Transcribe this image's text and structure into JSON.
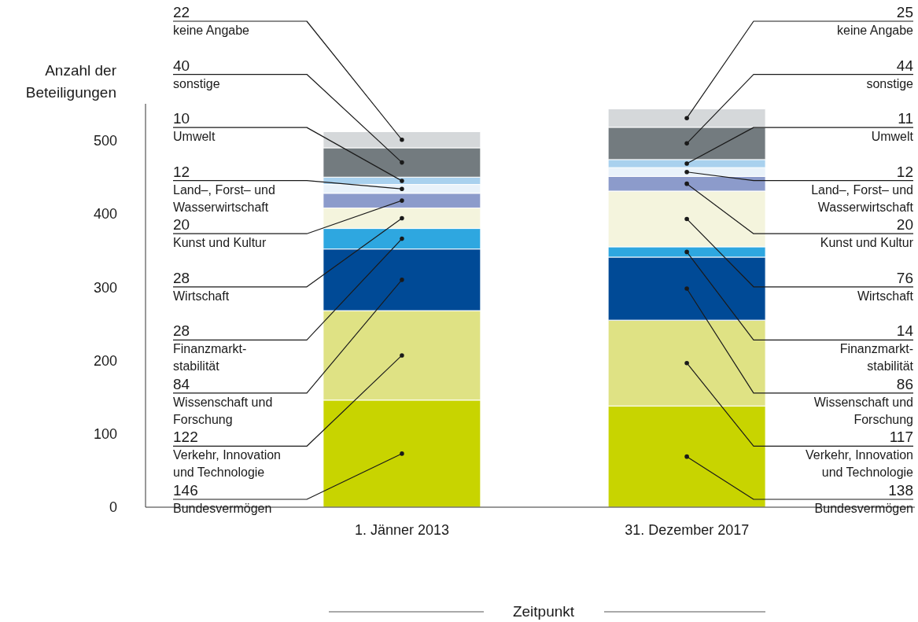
{
  "chart_data": {
    "type": "bar",
    "stacked": true,
    "ylabel": "Anzahl der Beteiligungen",
    "xlabel": "Zeitpunkt",
    "categories": [
      "1. Jänner 2013",
      "31. Dezember 2017"
    ],
    "ylim": [
      0,
      550
    ],
    "yticks": [
      0,
      100,
      200,
      300,
      400,
      500
    ],
    "grid": false,
    "legend": false,
    "series": [
      {
        "name": "Bundesvermögen",
        "color": "#c8d400",
        "values": [
          146,
          138
        ],
        "value_labels": [
          "146",
          "138"
        ]
      },
      {
        "name": "Verkehr, Innovation und Technologie",
        "color": "#dfe284",
        "values": [
          122,
          117
        ],
        "value_labels": [
          "122",
          "117"
        ]
      },
      {
        "name": "Wissenschaft und Forschung",
        "color": "#004a96",
        "values": [
          84,
          86
        ],
        "value_labels": [
          "84",
          "86"
        ]
      },
      {
        "name": "Finanzmarkt-stabilität",
        "color": "#2ea7e0",
        "values": [
          28,
          14
        ],
        "value_labels": [
          "28",
          "14"
        ]
      },
      {
        "name": "Wirtschaft",
        "color": "#f4f4dd",
        "values": [
          28,
          76
        ],
        "value_labels": [
          "28",
          "76"
        ]
      },
      {
        "name": "Kunst und Kultur",
        "color": "#8c9bcb",
        "values": [
          20,
          20
        ],
        "value_labels": [
          "20",
          "20"
        ]
      },
      {
        "name": "Land–, Forst– und Wasserwirtschaft",
        "color": "#e9f2fa",
        "values": [
          12,
          12
        ],
        "value_labels": [
          "12",
          "12"
        ]
      },
      {
        "name": "Umwelt",
        "color": "#a9d1ee",
        "values": [
          10,
          11
        ],
        "value_labels": [
          "10",
          "11"
        ]
      },
      {
        "name": "sonstige",
        "color": "#737b7f",
        "values": [
          40,
          44
        ],
        "value_labels": [
          "40",
          "44"
        ]
      },
      {
        "name": "keine Angabe",
        "color": "#d5d8da",
        "values": [
          22,
          25
        ],
        "value_labels": [
          "22",
          "25"
        ]
      }
    ]
  }
}
